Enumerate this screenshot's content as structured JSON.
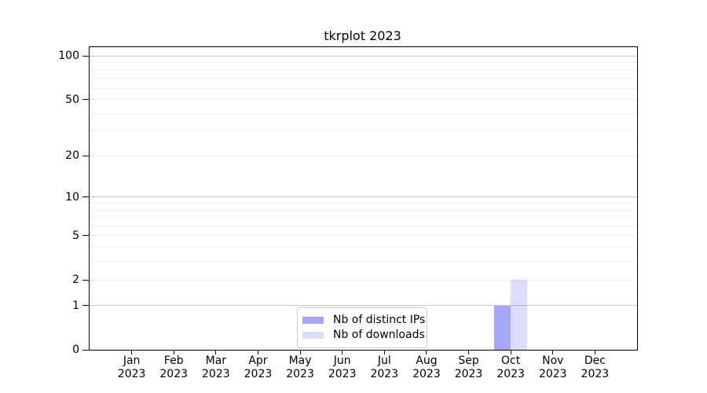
{
  "title": "tkrplot 2023",
  "legend": {
    "items": [
      {
        "label": "Nb of distinct IPs",
        "color": "rgba(80,80,240,0.5)"
      },
      {
        "label": "Nb of downloads",
        "color": "rgba(80,80,240,0.2)"
      }
    ]
  },
  "chart_data": {
    "type": "bar",
    "title": "tkrplot 2023",
    "x_months": [
      "Jan",
      "Feb",
      "Mar",
      "Apr",
      "May",
      "Jun",
      "Jul",
      "Aug",
      "Sep",
      "Oct",
      "Nov",
      "Dec"
    ],
    "x_year": "2023",
    "series": [
      {
        "name": "Nb of distinct IPs",
        "color": "rgba(80,80,240,0.5)",
        "values": [
          0,
          0,
          0,
          0,
          0,
          0,
          0,
          0,
          0,
          1,
          0,
          0
        ]
      },
      {
        "name": "Nb of downloads",
        "color": "rgba(80,80,240,0.2)",
        "values": [
          0,
          0,
          0,
          0,
          0,
          0,
          0,
          0,
          0,
          2,
          0,
          0
        ]
      }
    ],
    "yscale": "log1p",
    "ylim": [
      0,
      115
    ],
    "yticks": [
      0,
      1,
      2,
      5,
      10,
      20,
      50,
      100
    ],
    "major_gridlines": [
      1,
      10,
      100
    ],
    "minor_gridlines": [
      2,
      3,
      4,
      5,
      6,
      7,
      8,
      9,
      20,
      30,
      40,
      50,
      60,
      70,
      80,
      90
    ],
    "colors": {
      "grid_major": "#c9c9c9",
      "grid_minor": "#eeeeee",
      "axis": "#000000",
      "background": "#ffffff"
    },
    "legend_position": "lower center",
    "grid": true
  }
}
